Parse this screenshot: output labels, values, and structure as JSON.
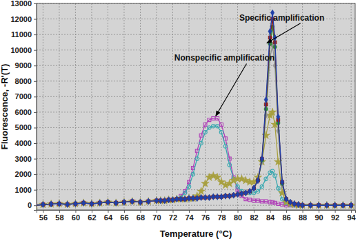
{
  "chart_data": {
    "type": "line",
    "x_label": "Temperature (°C)",
    "y_label": "Fluorescence, -R'(T)",
    "xlim": [
      55.2,
      94.5
    ],
    "ylim": [
      -300,
      13000
    ],
    "xticks": [
      56,
      58,
      60,
      62,
      64,
      66,
      68,
      70,
      72,
      74,
      76,
      78,
      80,
      82,
      84,
      86,
      88,
      90,
      92,
      94
    ],
    "yticks": [
      0,
      1000,
      2000,
      3000,
      4000,
      5000,
      6000,
      7000,
      8000,
      9000,
      10000,
      11000,
      12000,
      13000
    ],
    "grid": true,
    "x": [
      55,
      56,
      57,
      58,
      59,
      60,
      61,
      62,
      63,
      64,
      65,
      66,
      67,
      68,
      69,
      70,
      70.5,
      71,
      71.5,
      72,
      72.5,
      73,
      73.5,
      74,
      74.5,
      75,
      75.5,
      76,
      76.5,
      77,
      77.5,
      78,
      78.5,
      79,
      79.5,
      80,
      80.5,
      81,
      81.5,
      82,
      82.5,
      83,
      83.5,
      84,
      84.3,
      84.6,
      85,
      85.5,
      86,
      86.5,
      87,
      87.5,
      88,
      89,
      90,
      91,
      92,
      93,
      94
    ],
    "series": [
      {
        "color": "#b040b8",
        "marker": "square-open",
        "line_style": "solid",
        "values": [
          0,
          50,
          80,
          100,
          60,
          100,
          150,
          100,
          150,
          200,
          150,
          200,
          250,
          200,
          250,
          300,
          300,
          300,
          350,
          350,
          400,
          600,
          900,
          1500,
          2400,
          3500,
          4500,
          5200,
          5500,
          5600,
          5600,
          5200,
          4300,
          3000,
          1800,
          1000,
          600,
          400,
          350,
          300,
          300,
          250,
          250,
          200,
          200,
          150,
          100,
          50,
          0,
          0,
          0,
          0,
          0,
          0,
          0,
          0,
          0,
          0,
          0
        ]
      },
      {
        "color": "#38a8b0",
        "marker": "circle-open",
        "line_style": "solid",
        "values": [
          0,
          50,
          80,
          100,
          60,
          100,
          150,
          100,
          150,
          200,
          150,
          200,
          250,
          200,
          250,
          300,
          300,
          300,
          350,
          350,
          400,
          500,
          800,
          1200,
          2000,
          3000,
          4000,
          4700,
          5000,
          5100,
          5100,
          4700,
          3800,
          2600,
          1700,
          1200,
          900,
          800,
          800,
          800,
          900,
          1200,
          1700,
          2100,
          2200,
          1900,
          1100,
          400,
          150,
          50,
          0,
          0,
          0,
          0,
          0,
          0,
          0,
          0,
          0
        ]
      },
      {
        "color": "#a8a040",
        "marker": "star",
        "line_style": "solid",
        "values": [
          0,
          50,
          80,
          100,
          60,
          100,
          150,
          100,
          150,
          200,
          150,
          200,
          250,
          200,
          250,
          300,
          300,
          300,
          350,
          350,
          400,
          400,
          400,
          450,
          450,
          600,
          900,
          1400,
          1800,
          1900,
          1800,
          1500,
          1300,
          1400,
          1600,
          1700,
          1700,
          1600,
          1500,
          1500,
          1800,
          2800,
          4500,
          5800,
          6000,
          5200,
          2800,
          800,
          200,
          100,
          50,
          0,
          0,
          0,
          0,
          0,
          0,
          0,
          0
        ]
      },
      {
        "color": "#909090",
        "marker": "diamond",
        "line_style": "solid",
        "values": [
          0,
          50,
          80,
          100,
          60,
          100,
          150,
          100,
          150,
          200,
          150,
          200,
          250,
          200,
          250,
          300,
          300,
          300,
          350,
          350,
          400,
          400,
          400,
          450,
          450,
          450,
          500,
          500,
          500,
          550,
          550,
          550,
          600,
          600,
          650,
          700,
          750,
          800,
          900,
          1100,
          1600,
          2800,
          5800,
          9500,
          10300,
          9000,
          4800,
          1300,
          400,
          200,
          100,
          50,
          0,
          0,
          0,
          0,
          0,
          0,
          0
        ]
      },
      {
        "color": "#2e8b3a",
        "marker": "circle",
        "line_style": "solid",
        "values": [
          0,
          50,
          80,
          100,
          60,
          100,
          150,
          100,
          150,
          200,
          150,
          200,
          250,
          200,
          250,
          300,
          300,
          300,
          350,
          350,
          400,
          400,
          400,
          450,
          450,
          450,
          500,
          500,
          500,
          550,
          550,
          550,
          600,
          600,
          650,
          700,
          750,
          800,
          900,
          1100,
          1600,
          2900,
          6200,
          10400,
          11500,
          10200,
          5300,
          1400,
          400,
          200,
          100,
          50,
          0,
          0,
          0,
          0,
          0,
          0,
          0
        ]
      },
      {
        "color": "#8b1a1a",
        "marker": "square",
        "line_style": "solid",
        "values": [
          0,
          50,
          80,
          100,
          60,
          100,
          150,
          100,
          150,
          200,
          150,
          200,
          250,
          200,
          250,
          300,
          300,
          300,
          350,
          350,
          400,
          400,
          400,
          450,
          450,
          450,
          500,
          500,
          500,
          550,
          550,
          550,
          600,
          600,
          650,
          700,
          750,
          800,
          900,
          1100,
          1600,
          3000,
          6500,
          10800,
          12000,
          10500,
          5500,
          1500,
          400,
          200,
          100,
          50,
          0,
          0,
          0,
          0,
          0,
          0,
          0
        ]
      },
      {
        "color": "#2040a8",
        "marker": "diamond",
        "line_style": "solid",
        "values": [
          0,
          50,
          80,
          100,
          60,
          100,
          150,
          100,
          150,
          200,
          150,
          200,
          250,
          200,
          250,
          300,
          300,
          300,
          350,
          350,
          400,
          400,
          400,
          450,
          450,
          450,
          500,
          500,
          500,
          550,
          550,
          550,
          600,
          600,
          650,
          700,
          750,
          800,
          900,
          1100,
          1600,
          3000,
          6800,
          11200,
          12400,
          10800,
          5700,
          1500,
          400,
          200,
          100,
          50,
          0,
          0,
          0,
          0,
          0,
          0,
          0
        ]
      }
    ],
    "annotations": [
      {
        "text": "Specific amplification",
        "x": 80.2,
        "y": 11900,
        "arrow_x": 83.6,
        "arrow_y": 10450
      },
      {
        "text": "Nonspecific amplification",
        "x": 72.2,
        "y": 9300,
        "arrow_x": 77.3,
        "arrow_y": 5750
      }
    ]
  }
}
